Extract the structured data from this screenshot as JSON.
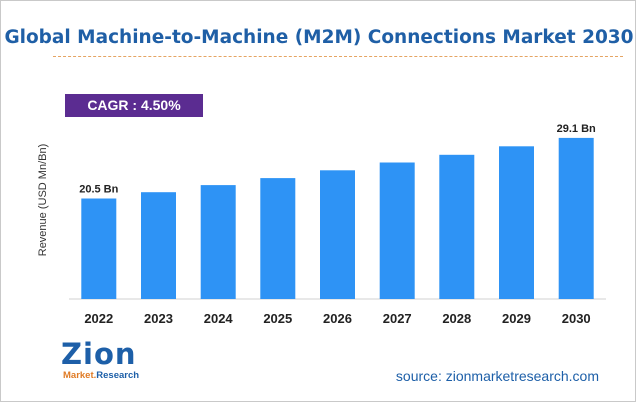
{
  "title": "Global Machine-to-Machine (M2M) Connections Market 2030",
  "cagr": "CAGR : 4.50%",
  "colors": {
    "bar": "#2e93f5",
    "title": "#1f5fa6",
    "cagr_bg": "#5b2c91",
    "source": "#1d5fa8",
    "logo_orange": "#e07b25"
  },
  "chart_data": {
    "type": "bar",
    "title": "Global Machine-to-Machine (M2M) Connections Market 2030",
    "xlabel": "",
    "ylabel": "Revenue (USD Mn/Bn)",
    "categories": [
      "2022",
      "2023",
      "2024",
      "2025",
      "2026",
      "2027",
      "2028",
      "2029",
      "2030"
    ],
    "values": [
      20.5,
      21.4,
      22.4,
      23.4,
      24.5,
      25.6,
      26.7,
      27.9,
      29.1
    ],
    "data_labels": [
      {
        "index": 0,
        "text": "20.5 Bn"
      },
      {
        "index": 8,
        "text": "29.1 Bn"
      }
    ],
    "grid": false,
    "legend": "none"
  },
  "logo": {
    "text": "Zion",
    "sub_1": "Market.",
    "sub_2": "Research"
  },
  "source": "source: zionmarketresearch.com"
}
